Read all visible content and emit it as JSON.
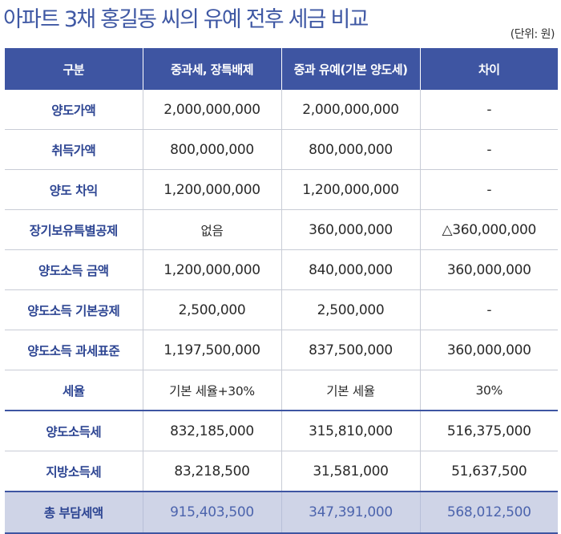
{
  "title": "아파트 3채 홍길동 씨의 유예 전후 세금 비교",
  "unit": "(단위: 원)",
  "columns": [
    "구분",
    "중과세, 장특배제",
    "중과 유예(기본 양도세)",
    "차이"
  ],
  "rows": [
    {
      "label": "양도가액",
      "c1": "2,000,000,000",
      "c2": "2,000,000,000",
      "c3": "-"
    },
    {
      "label": "취득가액",
      "c1": "800,000,000",
      "c2": "800,000,000",
      "c3": "-"
    },
    {
      "label": "양도 차익",
      "c1": "1,200,000,000",
      "c2": "1,200,000,000",
      "c3": "-"
    },
    {
      "label": "장기보유특별공제",
      "c1": "없음",
      "c2": "360,000,000",
      "c3": "△360,000,000"
    },
    {
      "label": "양도소득 금액",
      "c1": "1,200,000,000",
      "c2": "840,000,000",
      "c3": "360,000,000"
    },
    {
      "label": "양도소득 기본공제",
      "c1": "2,500,000",
      "c2": "2,500,000",
      "c3": "-"
    },
    {
      "label": "양도소득 과세표준",
      "c1": "1,197,500,000",
      "c2": "837,500,000",
      "c3": "360,000,000"
    },
    {
      "label": "세율",
      "c1": "기본 세율+30%",
      "c2": "기본 세율",
      "c3": "30%"
    },
    {
      "label": "양도소득세",
      "c1": "832,185,000",
      "c2": "315,810,000",
      "c3": "516,375,000"
    },
    {
      "label": "지방소득세",
      "c1": "83,218,500",
      "c2": "31,581,000",
      "c3": "51,637,500"
    },
    {
      "label": "총 부담세액",
      "c1": "915,403,500",
      "c2": "347,391,000",
      "c3": "568,012,500"
    }
  ],
  "colors": {
    "header": "#3e55a2",
    "title": "#3f58a4",
    "total_bg": "#cfd4e7"
  }
}
